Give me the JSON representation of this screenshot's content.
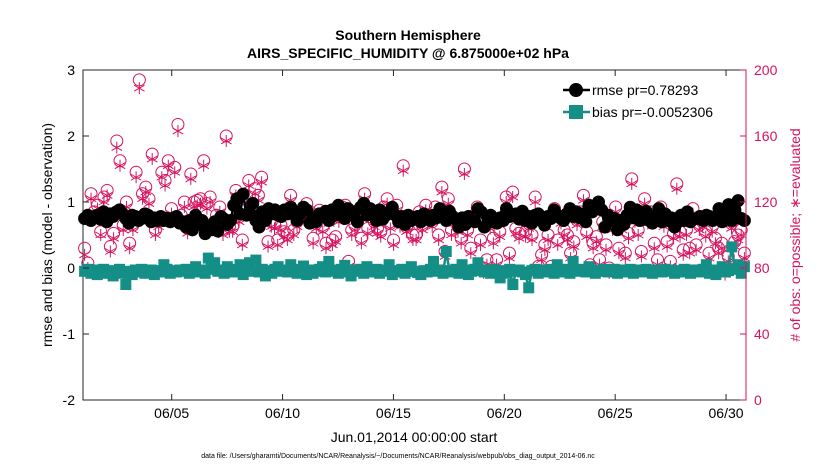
{
  "chart_data": {
    "type": "line",
    "title": "Southern Hemisphere",
    "subtitle": "AIRS_SPECIFIC_HUMIDITY @ 6.875000e+02 hPa",
    "xlabel": "Jun.01,2014 00:00:00 start",
    "ylabel_left": "rmse and bias (model - observation)",
    "ylabel_right": "# of obs: o=possible; ∗=evaluated",
    "footnote": "data file: /Users/gharamti/Documents/NCAR/Reanalysis/~/Documents/NCAR/Reanalysis/webpub/obs_diag_output_2014-06.nc",
    "xlim": [
      1,
      30.9
    ],
    "ylim_left": [
      -2,
      3
    ],
    "ylim_right": [
      0,
      200
    ],
    "x_ticks": [
      5,
      10,
      15,
      20,
      25,
      30
    ],
    "x_tick_labels": [
      "06/05",
      "06/10",
      "06/15",
      "06/20",
      "06/25",
      "06/30"
    ],
    "y_ticks_left": [
      -2,
      -1,
      0,
      1,
      2,
      3
    ],
    "y_tick_labels_left": [
      "-2",
      "-1",
      "0",
      "1",
      "2",
      "3"
    ],
    "y_ticks_right": [
      0,
      40,
      80,
      120,
      160,
      200
    ],
    "y_tick_labels_right": [
      "0",
      "40",
      "80",
      "120",
      "160",
      "200"
    ],
    "colors": {
      "rmse": "#000000",
      "bias": "#148f87",
      "obs": "#d6135f",
      "zero_line": "#8c8c8c"
    },
    "legend": {
      "position": "top-right",
      "entries": [
        {
          "label": "rmse pr=0.78293",
          "series": "rmse"
        },
        {
          "label": "bias pr=-0.0052306",
          "series": "bias"
        }
      ]
    },
    "series": [
      {
        "name": "rmse",
        "axis": "left",
        "marker": "circle",
        "description": "6-hourly rmse values",
        "values": [
          0.75,
          0.8,
          0.72,
          0.78,
          0.8,
          0.74,
          0.85,
          0.7,
          0.82,
          0.78,
          0.85,
          0.88,
          0.82,
          0.75,
          0.68,
          0.8,
          0.78,
          0.72,
          0.75,
          0.82,
          0.8,
          0.7,
          0.76,
          0.72,
          0.78,
          0.72,
          0.75,
          0.7,
          0.76,
          0.78,
          0.68,
          0.7,
          0.62,
          0.72,
          0.58,
          0.8,
          0.66,
          0.72,
          0.52,
          0.6,
          0.58,
          0.7,
          0.56,
          0.78,
          0.74,
          0.66,
          0.72,
          0.95,
          1.05,
          0.82,
          1.12,
          0.8,
          0.85,
          0.98,
          0.72,
          0.62,
          0.85,
          0.72,
          0.9,
          0.82,
          0.88,
          0.8,
          0.78,
          0.88,
          0.82,
          0.92,
          0.85,
          0.72,
          0.82,
          0.92,
          0.88,
          0.68,
          0.76,
          0.7,
          0.82,
          0.78,
          0.86,
          0.72,
          0.88,
          0.8,
          0.95,
          0.82,
          0.75,
          0.9,
          0.82,
          0.85,
          0.7,
          0.92,
          0.98,
          0.8,
          0.9,
          0.82,
          0.72,
          0.88,
          0.74,
          0.8,
          0.85,
          0.92,
          0.8,
          0.7,
          0.78,
          0.66,
          0.8,
          0.72,
          0.76,
          0.78,
          0.7,
          0.82,
          0.78,
          0.72,
          0.8,
          0.76,
          0.9,
          0.82,
          0.72,
          0.86,
          0.78,
          0.74,
          0.62,
          0.76,
          0.66,
          0.78,
          0.72,
          0.7,
          0.9,
          0.85,
          0.62,
          0.78,
          0.8,
          0.7,
          0.68,
          0.76,
          0.72,
          0.9,
          0.78,
          0.8,
          0.82,
          0.74,
          0.86,
          0.72,
          0.78,
          0.68,
          0.8,
          0.82,
          0.72,
          0.65,
          0.78,
          0.75,
          0.88,
          0.8,
          0.76,
          0.72,
          0.82,
          0.9,
          0.78,
          0.85,
          0.76,
          0.82,
          0.7,
          0.95,
          0.85,
          0.9,
          1.0,
          0.88,
          0.62,
          0.8,
          0.72,
          0.75,
          0.58,
          0.72,
          0.66,
          0.8,
          0.92,
          0.76,
          0.88,
          0.72,
          0.78,
          0.86,
          0.72,
          0.68,
          0.78,
          0.9,
          0.7,
          0.82,
          0.72,
          0.76,
          0.62,
          0.7,
          0.8,
          0.72,
          0.85,
          0.7,
          0.74,
          0.75,
          0.78,
          0.72,
          0.8,
          0.78,
          0.72,
          0.75,
          0.9,
          0.7,
          0.82,
          0.96,
          0.72,
          0.88,
          1.02,
          0.75,
          0.72
        ]
      },
      {
        "name": "bias",
        "axis": "left",
        "marker": "square",
        "description": "6-hourly bias values",
        "values": [
          -0.05,
          -0.02,
          -0.08,
          -0.03,
          -0.1,
          -0.05,
          -0.02,
          -0.08,
          -0.04,
          -0.12,
          -0.06,
          -0.02,
          -0.08,
          -0.25,
          -0.05,
          -0.1,
          -0.03,
          -0.06,
          -0.02,
          -0.08,
          -0.05,
          -0.03,
          -0.1,
          -0.04,
          -0.06,
          0.05,
          -0.02,
          -0.08,
          -0.04,
          -0.06,
          -0.03,
          -0.05,
          -0.02,
          -0.08,
          -0.04,
          0.02,
          -0.06,
          -0.03,
          -0.08,
          0.15,
          -0.02,
          0.08,
          -0.05,
          -0.03,
          -0.08,
          0.02,
          -0.04,
          -0.06,
          -0.02,
          0.05,
          -0.1,
          -0.03,
          0.08,
          -0.05,
          0.12,
          -0.06,
          -0.02,
          -0.12,
          -0.04,
          -0.08,
          -0.02,
          0.02,
          -0.05,
          -0.03,
          -0.06,
          0.05,
          -0.02,
          -0.08,
          -0.04,
          0.03,
          -0.1,
          -0.03,
          -0.08,
          -0.05,
          -0.02,
          0.02,
          -0.06,
          0.1,
          -0.03,
          -0.05,
          -0.08,
          -0.02,
          0.04,
          -0.06,
          -0.12,
          -0.03,
          -0.05,
          -0.02,
          -0.08,
          0.02,
          -0.04,
          -0.06,
          -0.02,
          -0.08,
          -0.05,
          -0.03,
          0.05,
          -0.1,
          -0.04,
          -0.06,
          -0.02,
          -0.08,
          -0.03,
          0.02,
          -0.05,
          -0.07,
          -0.1,
          -0.04,
          -0.06,
          -0.02,
          0.1,
          -0.05,
          -0.03,
          -0.08,
          0.25,
          -0.04,
          -0.06,
          -0.02,
          -0.08,
          0.05,
          -0.03,
          -0.1,
          -0.05,
          -0.02,
          0.08,
          -0.04,
          -0.06,
          -0.03,
          -0.08,
          -0.02,
          -0.05,
          -0.15,
          -0.04,
          -0.08,
          -0.02,
          -0.25,
          -0.05,
          -0.03,
          -0.06,
          -0.1,
          -0.3,
          -0.04,
          -0.02,
          -0.08,
          -0.05,
          -0.03,
          -0.06,
          -0.02,
          -0.08,
          0.05,
          -0.04,
          -0.06,
          -0.02,
          -0.08,
          0.1,
          -0.03,
          -0.05,
          -0.02,
          -0.06,
          0.02,
          -0.04,
          -0.08,
          -0.03,
          -0.05,
          -0.02,
          -0.06,
          -0.04,
          -0.02,
          -0.08,
          -0.03,
          -0.05,
          -0.06,
          -0.02,
          -0.08,
          -0.04,
          -0.03,
          -0.06,
          -0.02,
          -0.05,
          -0.08,
          -0.03,
          -0.04,
          -0.06,
          -0.02,
          -0.05,
          -0.03,
          -0.08,
          -0.04,
          -0.06,
          -0.02,
          -0.05,
          -0.08,
          -0.03,
          -0.04,
          -0.06,
          -0.02,
          0.05,
          -0.08,
          -0.03,
          -0.1,
          -0.05,
          0.02,
          -0.06,
          -0.04,
          0.32,
          -0.02,
          0.05,
          -0.08,
          0.02
        ]
      },
      {
        "name": "obs_possible",
        "axis": "right",
        "marker": "open-circle",
        "values": [
          92,
          83,
          125,
          114,
          118,
          102,
          123,
          127,
          93,
          101,
          157,
          145,
          106,
          120,
          95,
          106,
          138,
          194,
          125,
          129,
          122,
          149,
          103,
          108,
          138,
          133,
          145,
          116,
          141,
          167,
          112,
          120,
          104,
          137,
          120,
          121,
          122,
          145,
          119,
          123,
          107,
          112,
          117,
          103,
          160,
          105,
          105,
          127,
          111,
          97,
          115,
          133,
          119,
          128,
          124,
          135,
          112,
          96,
          108,
          107,
          97,
          106,
          102,
          100,
          124,
          103,
          108,
          112,
          114,
          119,
          114,
          98,
          107,
          115,
          105,
          95,
          110,
          97,
          99,
          111,
          117,
          118,
          84,
          103,
          106,
          115,
          98,
          125,
          104,
          113,
          108,
          104,
          102,
          117,
          122,
          107,
          97,
          118,
          108,
          142,
          105,
          109,
          100,
          100,
          114,
          106,
          118,
          112,
          108,
          117,
          100,
          129,
          90,
          122,
          103,
          110,
          105,
          98,
          140,
          103,
          92,
          112,
          117,
          97,
          80,
          85,
          107,
          98,
          85,
          102,
          111,
          123,
          89,
          126,
          104,
          101,
          114,
          102,
          107,
          100,
          123,
          81,
          88,
          94,
          100,
          81,
          116,
          97,
          110,
          103,
          100,
          89,
          96,
          109,
          114,
          124,
          102,
          82,
          95,
          99,
          85,
          108,
          94,
          80,
          106,
          117,
          92,
          106,
          89,
          101,
          134,
          111,
          103,
          90,
          122,
          110,
          114,
          95,
          85,
          117,
          108,
          96,
          84,
          101,
          131,
          102,
          91,
          103,
          92,
          116,
          94,
          106,
          108,
          102,
          89,
          105,
          98,
          92,
          95,
          79,
          87,
          107,
          96,
          100,
          103,
          89
        ]
      },
      {
        "name": "obs_evaluated",
        "axis": "right",
        "marker": "asterisk",
        "values": [
          88,
          80,
          122,
          112,
          116,
          100,
          120,
          124,
          90,
          98,
          153,
          142,
          103,
          117,
          92,
          103,
          135,
          189,
          122,
          126,
          119,
          146,
          100,
          105,
          135,
          130,
          142,
          113,
          138,
          163,
          109,
          117,
          101,
          134,
          117,
          118,
          119,
          142,
          116,
          120,
          104,
          109,
          114,
          100,
          157,
          102,
          102,
          124,
          108,
          94,
          112,
          130,
          116,
          125,
          121,
          132,
          109,
          93,
          105,
          104,
          94,
          103,
          99,
          97,
          121,
          100,
          105,
          109,
          111,
          116,
          111,
          95,
          104,
          112,
          102,
          92,
          107,
          94,
          96,
          108,
          114,
          115,
          81,
          100,
          103,
          112,
          95,
          122,
          101,
          110,
          105,
          101,
          99,
          114,
          119,
          104,
          94,
          115,
          105,
          139,
          102,
          106,
          97,
          97,
          111,
          103,
          115,
          109,
          105,
          114,
          97,
          126,
          87,
          119,
          100,
          107,
          102,
          95,
          137,
          100,
          89,
          109,
          114,
          94,
          77,
          82,
          104,
          95,
          82,
          99,
          108,
          120,
          86,
          123,
          101,
          98,
          111,
          99,
          104,
          97,
          120,
          78,
          85,
          91,
          97,
          78,
          113,
          94,
          107,
          100,
          97,
          86,
          93,
          106,
          111,
          121,
          99,
          79,
          92,
          96,
          82,
          105,
          91,
          77,
          103,
          114,
          89,
          103,
          86,
          98,
          131,
          108,
          100,
          87,
          119,
          107,
          111,
          92,
          82,
          114,
          105,
          93,
          81,
          98,
          128,
          99,
          88,
          100,
          89,
          113,
          91,
          103,
          105,
          99,
          86,
          102,
          95,
          89,
          92,
          76,
          84,
          104,
          93,
          97,
          100,
          86
        ]
      }
    ]
  }
}
